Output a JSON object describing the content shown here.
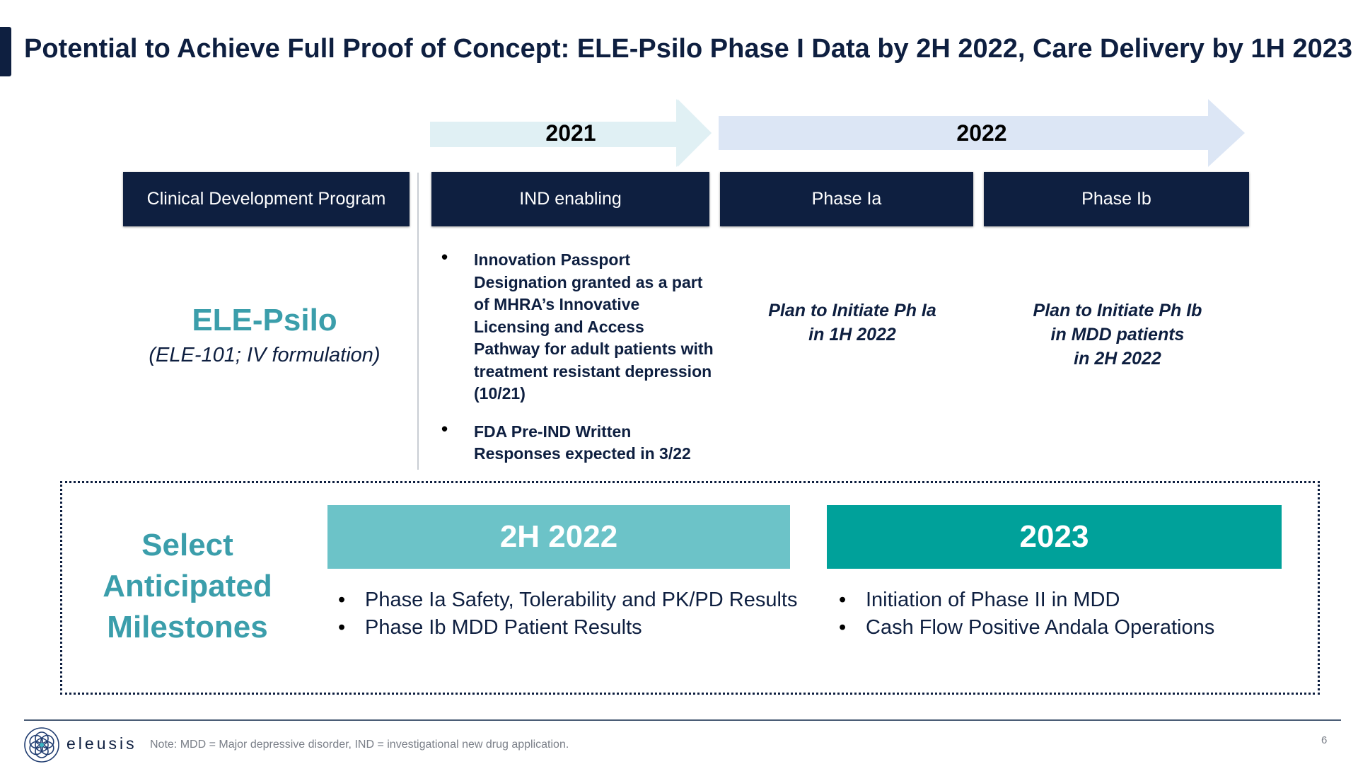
{
  "title": "Potential to Achieve Full Proof of Concept: ELE-Psilo Phase I Data by 2H 2022, Care Delivery by 1H 2023",
  "timeline": {
    "years": [
      {
        "label": "2021",
        "color": "#e0f0f4"
      },
      {
        "label": "2022",
        "color": "#dce6f5"
      }
    ],
    "headers": [
      "Clinical Development Program",
      "IND enabling",
      "Phase Ia",
      "Phase Ib"
    ]
  },
  "program": {
    "name": "ELE-Psilo",
    "subtitle": "(ELE-101; IV formulation)"
  },
  "ind_enabling": {
    "bullets": [
      "Innovation Passport Designation granted as a part of MHRA’s Innovative Licensing and Access Pathway for adult patients with treatment resistant depression (10/21)",
      "FDA Pre-IND Written Responses expected in  3/22"
    ]
  },
  "phase_ia": {
    "plan_lines": [
      "Plan to Initiate Ph Ia",
      "in 1H 2022"
    ]
  },
  "phase_ib": {
    "plan_lines": [
      "Plan to Initiate Ph Ib",
      "in MDD patients",
      "in 2H 2022"
    ]
  },
  "milestones": {
    "label_lines": [
      "Select",
      "Anticipated",
      "Milestones"
    ],
    "groups": [
      {
        "heading": "2H 2022",
        "color": "#6cc3c8",
        "items": [
          "Phase Ia Safety, Tolerability and PK/PD Results",
          "Phase Ib MDD Patient Results"
        ]
      },
      {
        "heading": "2023",
        "color": "#00a19a",
        "items": [
          "Initiation of Phase II in MDD",
          "Cash Flow Positive Andala Operations"
        ]
      }
    ]
  },
  "footer": {
    "logo_text": "eleusis",
    "logo_icon": "flower-of-life-icon",
    "note": "Note: MDD = Major depressive disorder, IND = investigational new drug application.",
    "page_number": "6"
  }
}
